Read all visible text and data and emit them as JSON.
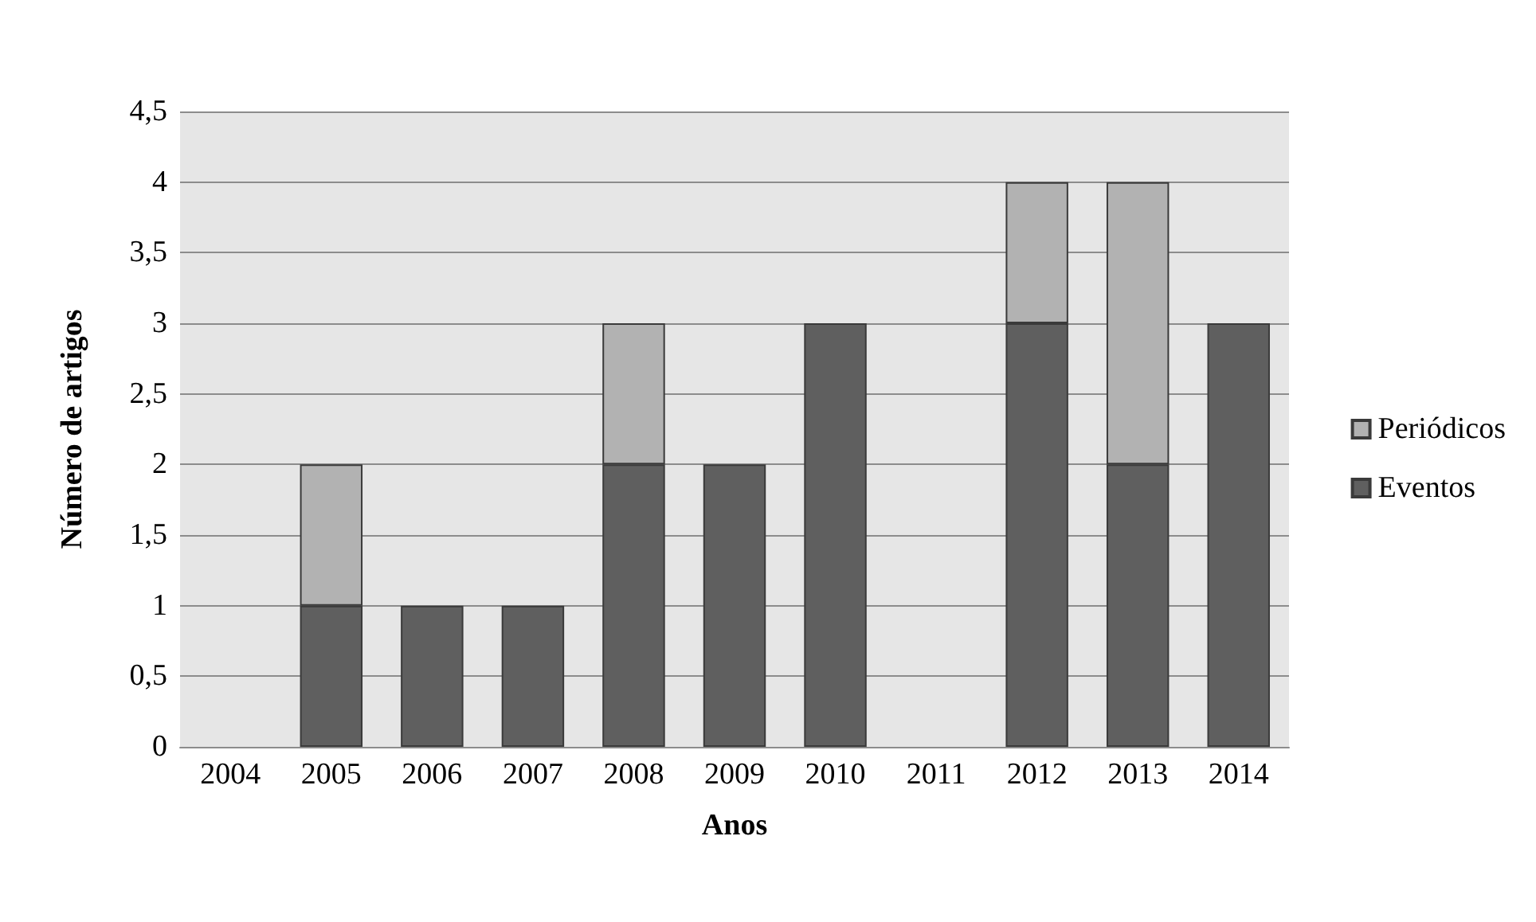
{
  "chart_data": {
    "type": "bar",
    "stacked": true,
    "xlabel": "Anos",
    "ylabel": "Número de artigos",
    "categories": [
      "2004",
      "2005",
      "2006",
      "2007",
      "2008",
      "2009",
      "2010",
      "2011",
      "2012",
      "2013",
      "2014"
    ],
    "series": [
      {
        "name": "Eventos",
        "color": "#5f5f5f",
        "values": [
          0,
          1,
          1,
          1,
          2,
          2,
          3,
          0,
          3,
          2,
          3
        ]
      },
      {
        "name": "Periódicos",
        "color": "#b2b2b2",
        "values": [
          0,
          1,
          0,
          0,
          1,
          0,
          0,
          0,
          1,
          2,
          0
        ]
      }
    ],
    "ylim": [
      0,
      4.5
    ],
    "yticks": [
      0,
      {
        "value": 0.5,
        "label": "0,5"
      },
      1,
      {
        "value": 1.5,
        "label": "1,5"
      },
      2,
      {
        "value": 2.5,
        "label": "2,5"
      },
      3,
      {
        "value": 3.5,
        "label": "3,5"
      },
      4,
      {
        "value": 4.5,
        "label": "4,5"
      }
    ],
    "grid": "y",
    "legend": "right"
  }
}
